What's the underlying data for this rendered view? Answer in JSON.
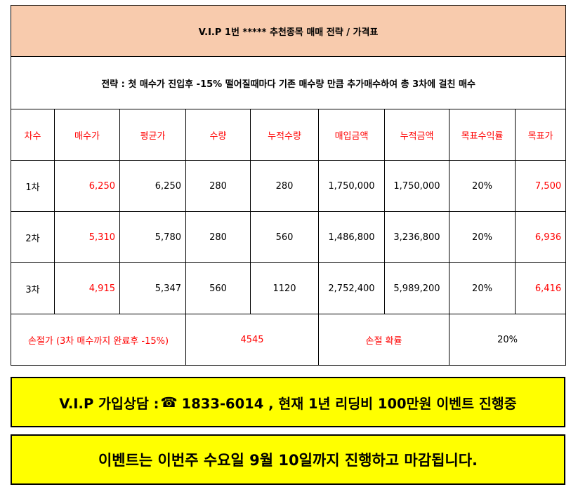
{
  "title": "V.I.P 1번 ***** 추천종목  매매 전략 / 가격표",
  "strategy": "전략 : 첫 매수가 진입후 -15% 떨어질때마다 기존 매수량 만큼 추가매수하여 총 3차에 걸친 매수",
  "headers": [
    "차수",
    "매수가",
    "평균가",
    "수량",
    "누적수량",
    "매입금액",
    "누적금액",
    "목표수익률",
    "목표가"
  ],
  "rows": [
    {
      "round": "1차",
      "buy_price": "6,250",
      "avg_price": "6,250",
      "qty": "280",
      "cum_qty": "280",
      "buy_amount": "1,750,000",
      "cum_amount": "1,750,000",
      "target_rate": "20%",
      "target_price": "7,500"
    },
    {
      "round": "2차",
      "buy_price": "5,310",
      "avg_price": "5,780",
      "qty": "280",
      "cum_qty": "560",
      "buy_amount": "1,486,800",
      "cum_amount": "3,236,800",
      "target_rate": "20%",
      "target_price": "6,936"
    },
    {
      "round": "3차",
      "buy_price": "4,915",
      "avg_price": "5,347",
      "qty": "560",
      "cum_qty": "1120",
      "buy_amount": "2,752,400",
      "cum_amount": "5,989,200",
      "target_rate": "20%",
      "target_price": "6,416"
    }
  ],
  "stop_loss": {
    "label": "손절가 (3차 매수까지 완료후 -15%)",
    "value": "4545",
    "prob_label": "손절 확률",
    "prob_value": "20%"
  },
  "banner1": {
    "prefix": "V.I.P 가입상담  :",
    "icon": "phone-icon",
    "icon_glyph": "☎",
    "text": "1833-6014 , 현재 1년 리딩비 100만원 이벤트 진행중"
  },
  "banner2": {
    "text": "이벤트는 이번주 수요일 9월 10일까지 진행하고 마감됩니다."
  },
  "colors": {
    "title_bg": "#f8cbad",
    "banner_bg": "#ffff00",
    "accent_red": "#ff0000"
  }
}
